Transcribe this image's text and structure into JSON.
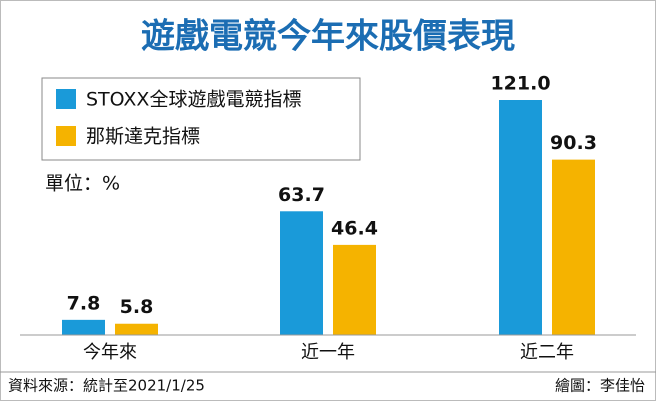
{
  "chart_data": {
    "type": "bar",
    "title": "遊戲電競今年來股價表現",
    "unit_label": "單位：%",
    "categories": [
      "今年來",
      "近一年",
      "近二年"
    ],
    "series": [
      {
        "name": "STOXX全球遊戲電競指標",
        "color": "#1a9ad9",
        "values": [
          7.8,
          63.7,
          121.0
        ],
        "value_labels": [
          "7.8",
          "63.7",
          "121.0"
        ]
      },
      {
        "name": "那斯達克指標",
        "color": "#f5b300",
        "values": [
          5.8,
          46.4,
          90.3
        ],
        "value_labels": [
          "5.8",
          "46.4",
          "90.3"
        ]
      }
    ],
    "source": "資料來源：統計至2021/1/25",
    "credit": "繪圖：李佳怡"
  }
}
